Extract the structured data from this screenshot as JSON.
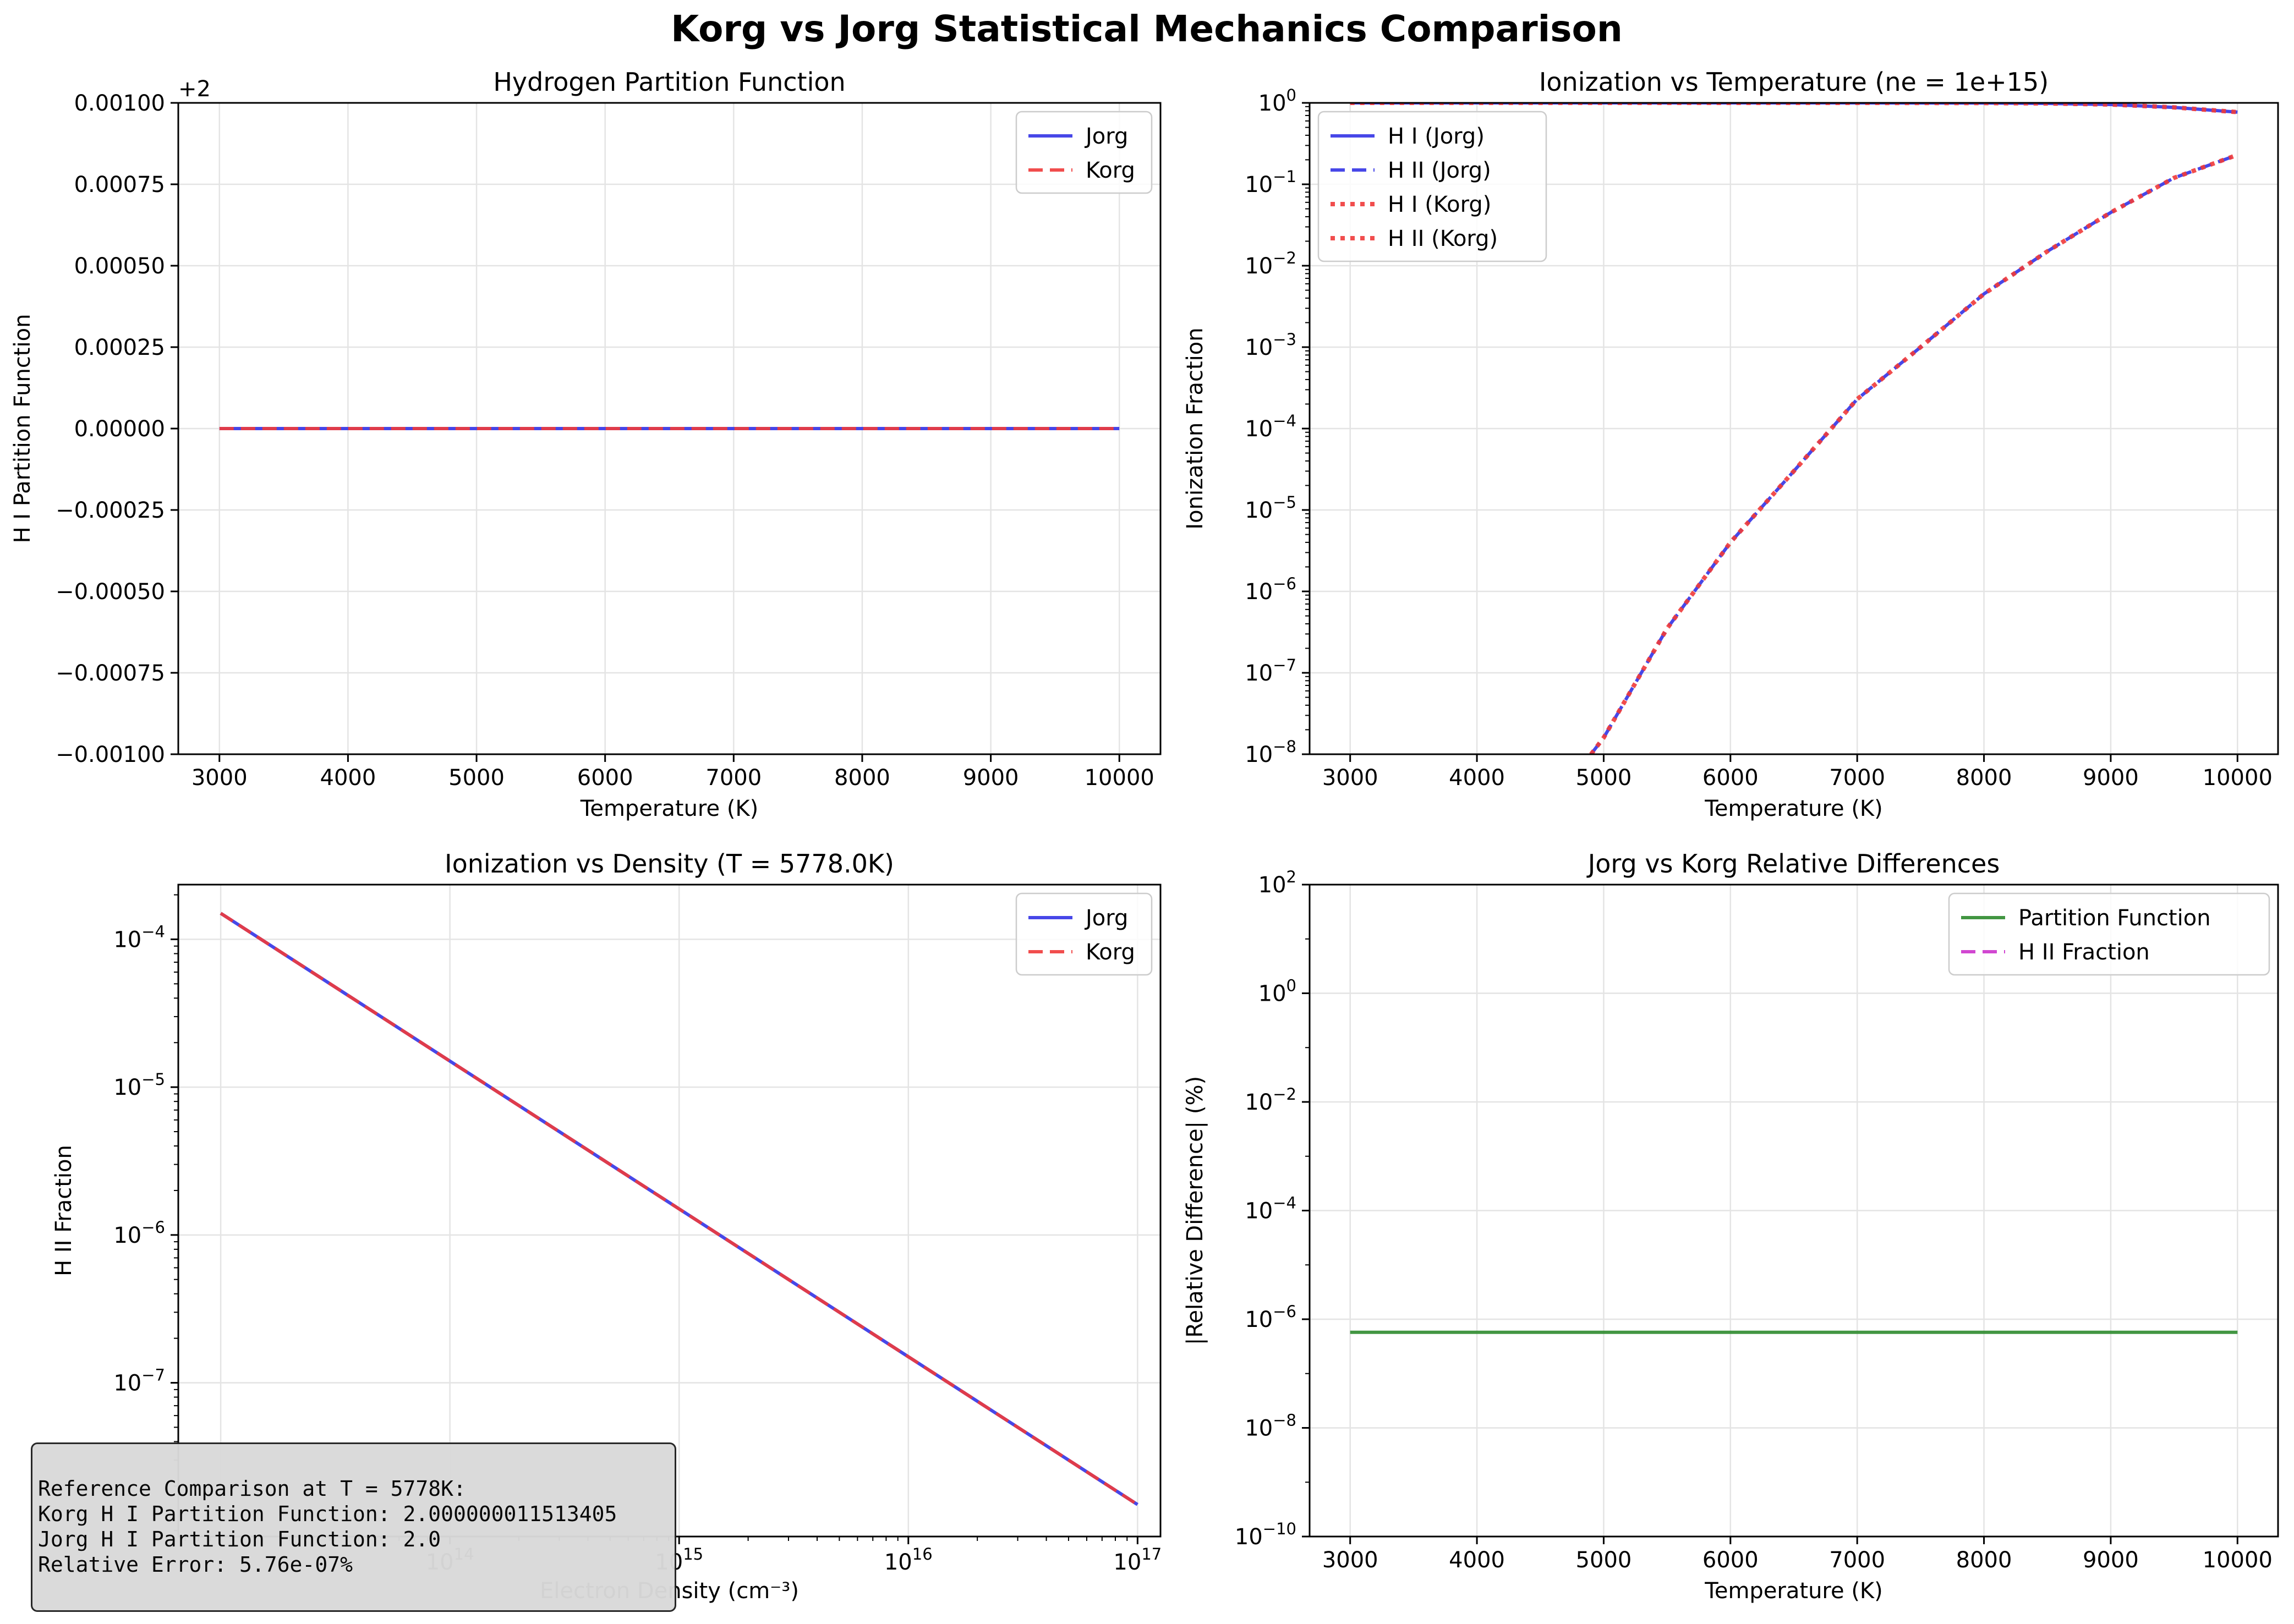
{
  "figure_title": "Korg vs Jorg Statistical Mechanics Comparison",
  "colors": {
    "jorg": "#3333e6",
    "korg": "#f03a3a",
    "partition": "#2e8b2e",
    "hii": "#cc33cc"
  },
  "chart_data": [
    {
      "type": "line",
      "title": "Hydrogen Partition Function",
      "xlabel": "Temperature (K)",
      "ylabel": "H I Partition Function",
      "offset_label": "+2",
      "xlim": [
        2680,
        10320
      ],
      "ylim": [
        -0.001,
        0.001
      ],
      "xticks": [
        3000,
        4000,
        5000,
        6000,
        7000,
        8000,
        9000,
        10000
      ],
      "yticks": [
        -0.001,
        -0.00075,
        -0.0005,
        -0.00025,
        0,
        0.00025,
        0.0005,
        0.00075,
        0.001
      ],
      "ytick_labels": [
        "−0.00100",
        "−0.00075",
        "−0.00050",
        "−0.00025",
        "0.00000",
        "0.00025",
        "0.00050",
        "0.00075",
        "0.00100"
      ],
      "grid": true,
      "legend": "upper right",
      "series": [
        {
          "name": "Jorg",
          "style": "solid",
          "color": "#3333e6",
          "x": [
            3000,
            10000
          ],
          "y": [
            0,
            0
          ]
        },
        {
          "name": "Korg",
          "style": "dashed",
          "color": "#f03a3a",
          "x": [
            3000,
            10000
          ],
          "y": [
            0,
            0
          ]
        }
      ]
    },
    {
      "type": "line",
      "title": "Ionization vs Temperature (ne = 1e+15)",
      "xlabel": "Temperature (K)",
      "ylabel": "Ionization Fraction",
      "yscale": "log",
      "xlim": [
        2680,
        10320
      ],
      "ylim": [
        1e-08,
        1.0
      ],
      "xticks": [
        3000,
        4000,
        5000,
        6000,
        7000,
        8000,
        9000,
        10000
      ],
      "yticks_exp": [
        -8,
        -7,
        -6,
        -5,
        -4,
        -3,
        -2,
        -1,
        0
      ],
      "grid": true,
      "legend": "upper left",
      "series": [
        {
          "name": "H I (Jorg)",
          "style": "solid",
          "color": "#3333e6",
          "x": [
            3000,
            4000,
            5000,
            6000,
            7000,
            8000,
            8500,
            9000,
            9500,
            10000
          ],
          "y": [
            1.0,
            1.0,
            1.0,
            1.0,
            0.9997,
            0.995,
            0.985,
            0.955,
            0.88,
            0.77
          ]
        },
        {
          "name": "H II (Jorg)",
          "style": "dashed",
          "color": "#3333e6",
          "x": [
            4900,
            5000,
            5500,
            6000,
            6500,
            7000,
            7500,
            8000,
            8500,
            9000,
            9500,
            10000
          ],
          "y": [
            1e-08,
            1.6e-08,
            3.5e-07,
            4e-06,
            3e-05,
            0.00023,
            0.001,
            0.0045,
            0.015,
            0.045,
            0.12,
            0.23
          ]
        },
        {
          "name": "H I (Korg)",
          "style": "dotted",
          "color": "#f03a3a",
          "x": [
            3000,
            4000,
            5000,
            6000,
            7000,
            8000,
            8500,
            9000,
            9500,
            10000
          ],
          "y": [
            1.0,
            1.0,
            1.0,
            1.0,
            0.9997,
            0.995,
            0.985,
            0.955,
            0.88,
            0.77
          ]
        },
        {
          "name": "H II (Korg)",
          "style": "dotted",
          "color": "#f03a3a",
          "x": [
            4900,
            5000,
            5500,
            6000,
            6500,
            7000,
            7500,
            8000,
            8500,
            9000,
            9500,
            10000
          ],
          "y": [
            1e-08,
            1.6e-08,
            3.5e-07,
            4e-06,
            3e-05,
            0.00023,
            0.001,
            0.0045,
            0.015,
            0.045,
            0.12,
            0.23
          ]
        }
      ]
    },
    {
      "type": "line",
      "title": "Ionization vs Density (T = 5778.0K)",
      "xlabel": "Electron Density (cm⁻³)",
      "ylabel": "H II Fraction",
      "xscale": "log",
      "yscale": "log",
      "xlim_exp": [
        12.815,
        17.1
      ],
      "ylim_exp": [
        -8.04,
        -3.63
      ],
      "xticks_exp": [
        14,
        15,
        16,
        17
      ],
      "yticks_exp": [
        -7,
        -6,
        -5,
        -4
      ],
      "grid": true,
      "legend": "upper right",
      "series": [
        {
          "name": "Jorg",
          "style": "solid",
          "color": "#3333e6",
          "x": [
            10000000000000.0,
            1e+17
          ],
          "y": [
            0.00015,
            1.5e-08
          ]
        },
        {
          "name": "Korg",
          "style": "dashed",
          "color": "#f03a3a",
          "x": [
            10000000000000.0,
            1e+17
          ],
          "y": [
            0.00015,
            1.5e-08
          ]
        }
      ]
    },
    {
      "type": "line",
      "title": "Jorg vs Korg Relative Differences",
      "xlabel": "Temperature (K)",
      "ylabel": "|Relative Difference| (%)",
      "yscale": "log",
      "xlim": [
        2680,
        10320
      ],
      "ylim": [
        1e-10,
        100
      ],
      "xticks": [
        3000,
        4000,
        5000,
        6000,
        7000,
        8000,
        9000,
        10000
      ],
      "yticks_exp": [
        -10,
        -8,
        -6,
        -4,
        -2,
        0,
        2
      ],
      "grid": true,
      "legend": "upper right",
      "series": [
        {
          "name": "Partition Function",
          "style": "solid",
          "color": "#2e8b2e",
          "x": [
            3000,
            10000
          ],
          "y": [
            5.76e-07,
            5.76e-07
          ]
        },
        {
          "name": "H II Fraction",
          "style": "dashed",
          "color": "#cc33cc",
          "x": [],
          "y": []
        }
      ]
    }
  ],
  "reference_box": {
    "line1": "Reference Comparison at T = 5778K:",
    "line2": "Korg H I Partition Function: 2.000000011513405",
    "line3": "Jorg H I Partition Function: 2.0",
    "line4": "Relative Error: 5.76e-07%"
  }
}
